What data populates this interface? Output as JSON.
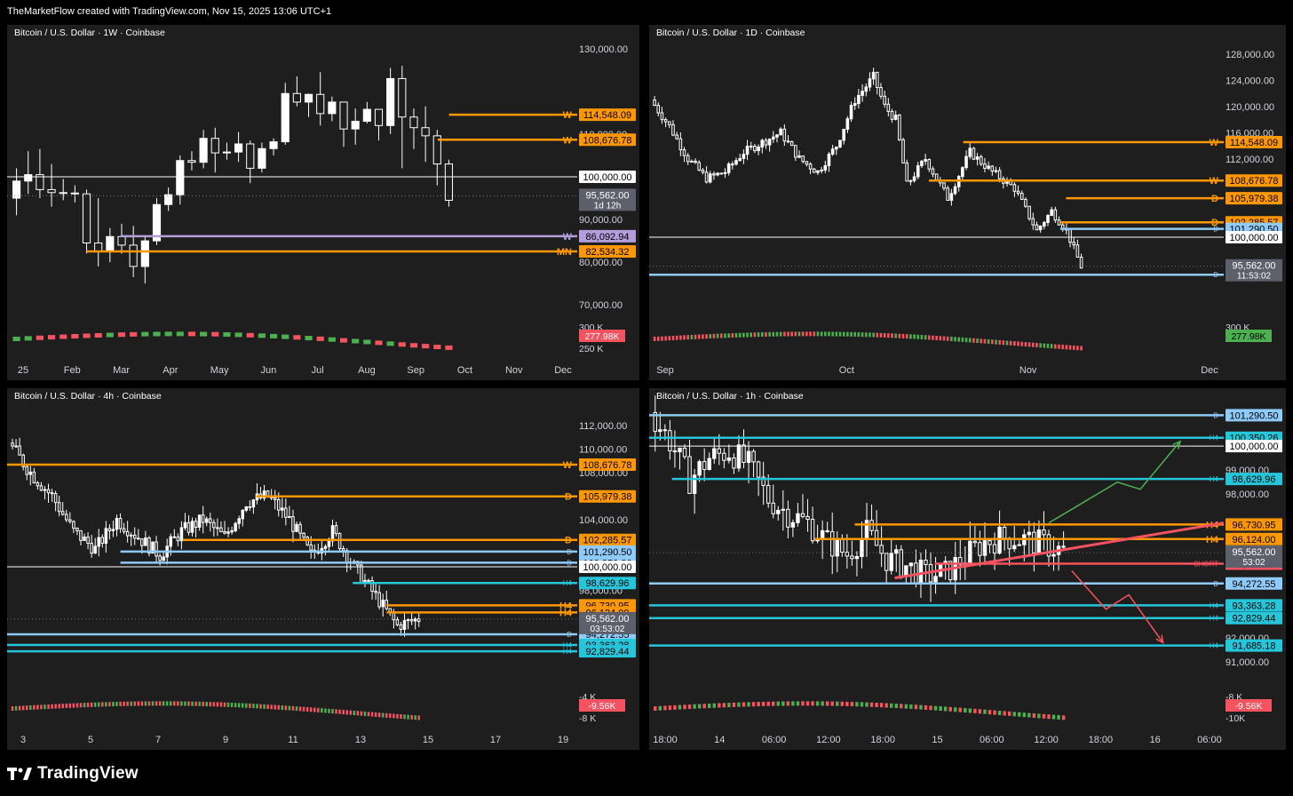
{
  "header": {
    "text": "TheMarketFlow created with TradingView.com, Nov 15, 2025 13:06 UTC+1"
  },
  "footer": {
    "brand": "TradingView"
  },
  "colors": {
    "up": "#ffffff",
    "down": "#ffffff",
    "orange": "#ff9800",
    "lavender": "#b39ddb",
    "lightblue": "#90caf9",
    "cyan": "#26c6da",
    "red": "#f7525f",
    "green": "#4caf50",
    "price": "#5d606b",
    "white": "#ffffff"
  },
  "chart_data": [
    {
      "type": "candlestick",
      "title": "Bitcoin / U.S. Dollar · 1W · Coinbase",
      "ylim": [
        69000,
        131000
      ],
      "y_ticks": [
        {
          "v": 130000,
          "t": "130,000.00"
        },
        {
          "v": 110000,
          "t": "110,000.00"
        },
        {
          "v": 90000,
          "t": "90,000.00"
        },
        {
          "v": 80000,
          "t": "80,000.00"
        },
        {
          "v": 70000,
          "t": "70,000.00"
        }
      ],
      "x_ticks": [
        "25",
        "Feb",
        "Mar",
        "Apr",
        "May",
        "Jun",
        "Jul",
        "Aug",
        "Sep",
        "Oct",
        "Nov",
        "Dec"
      ],
      "volume_labels": [
        "300 K",
        "250 K"
      ],
      "volume_badge": {
        "text": "277.98K",
        "color": "#f7525f"
      },
      "levels": [
        {
          "v": 114548.09,
          "label": "W",
          "text": "114,548.09",
          "color": "#ff9800",
          "from": 0.78
        },
        {
          "v": 108676.78,
          "label": "W",
          "text": "108,676.78",
          "color": "#ff9800",
          "from": 0.76
        },
        {
          "v": 100000,
          "label": "",
          "text": "100,000.00",
          "color": "#ffffff",
          "from": 0.0
        },
        {
          "v": 86092.94,
          "label": "W",
          "text": "86,092.94",
          "color": "#b39ddb",
          "from": 0.2
        },
        {
          "v": 82534.32,
          "label": "MN",
          "text": "82,534.32",
          "color": "#ff9800",
          "from": 0.14
        }
      ],
      "price": {
        "v": 95562.0,
        "text": "95,562.00",
        "sub": "1d 12h"
      },
      "candles": [
        [
          95000,
          102000,
          91000,
          99000
        ],
        [
          99000,
          106000,
          96000,
          100500
        ],
        [
          100500,
          106500,
          95000,
          97000
        ],
        [
          97000,
          103000,
          93000,
          96300
        ],
        [
          96300,
          99500,
          94500,
          96200
        ],
        [
          96200,
          98000,
          94000,
          96000
        ],
        [
          96000,
          97000,
          82000,
          84500
        ],
        [
          84500,
          95000,
          79000,
          82500
        ],
        [
          82500,
          88000,
          80000,
          86000
        ],
        [
          86000,
          89000,
          82000,
          84000
        ],
        [
          84000,
          88500,
          76500,
          79000
        ],
        [
          79000,
          86000,
          75000,
          85000
        ],
        [
          85000,
          95000,
          84000,
          93500
        ],
        [
          93500,
          97500,
          92000,
          95800
        ],
        [
          95800,
          105000,
          93500,
          103800
        ],
        [
          103800,
          106000,
          101500,
          103400
        ],
        [
          103400,
          111000,
          102000,
          109000
        ],
        [
          109000,
          111500,
          101000,
          105600
        ],
        [
          105600,
          108000,
          104000,
          105800
        ],
        [
          105800,
          110500,
          103500,
          107700
        ],
        [
          107700,
          108500,
          98500,
          102000
        ],
        [
          102000,
          108000,
          101000,
          106600
        ],
        [
          106600,
          109000,
          105000,
          108200
        ],
        [
          108200,
          122000,
          107500,
          119500
        ],
        [
          119500,
          123500,
          116500,
          117500
        ],
        [
          117500,
          119500,
          114000,
          119300
        ],
        [
          119300,
          124500,
          112000,
          114800
        ],
        [
          114800,
          118800,
          113000,
          117500
        ],
        [
          117500,
          117000,
          107000,
          111200
        ],
        [
          111200,
          116000,
          107500,
          113000
        ],
        [
          113000,
          117500,
          112500,
          115800
        ],
        [
          115800,
          115500,
          108500,
          112000
        ],
        [
          112000,
          125500,
          110000,
          123000
        ],
        [
          123000,
          126000,
          102000,
          114000
        ],
        [
          114000,
          116000,
          106500,
          111500
        ],
        [
          111500,
          116500,
          103500,
          109600
        ],
        [
          109600,
          111000,
          98000,
          103000
        ],
        [
          103000,
          104000,
          93000,
          94500
        ]
      ]
    },
    {
      "type": "candlestick",
      "title": "Bitcoin / U.S. Dollar · 1D · Coinbase",
      "ylim": [
        89000,
        129500
      ],
      "y_ticks": [
        {
          "v": 128000,
          "t": "128,000.00"
        },
        {
          "v": 124000,
          "t": "124,000.00"
        },
        {
          "v": 120000,
          "t": "120,000.00"
        },
        {
          "v": 116000,
          "t": "116,000.00"
        },
        {
          "v": 112000,
          "t": "112,000.00"
        }
      ],
      "x_ticks": [
        "Sep",
        "Oct",
        "Nov",
        "Dec"
      ],
      "volume_labels": [
        "300 K"
      ],
      "volume_badge": {
        "text": "277.98K",
        "color": "#4caf50"
      },
      "levels": [
        {
          "v": 114548.09,
          "label": "W",
          "text": "114,548.09",
          "color": "#ff9800",
          "from": 0.55
        },
        {
          "v": 108676.78,
          "label": "W",
          "text": "108,676.78",
          "color": "#ff9800",
          "from": 0.49
        },
        {
          "v": 105979.38,
          "label": "D",
          "text": "105,979.38",
          "color": "#ff9800",
          "from": 0.73
        },
        {
          "v": 102285.57,
          "label": "D",
          "text": "102,285.57",
          "color": "#ff9800",
          "from": 0.72
        },
        {
          "v": 101290.5,
          "label": "D",
          "text": "101,290.50",
          "color": "#90caf9",
          "from": 0.72
        },
        {
          "v": 100000,
          "label": "",
          "text": "100,000.00",
          "color": "#ffffff",
          "from": 0.0
        },
        {
          "v": 94272.55,
          "label": "D",
          "text": "94,272.55",
          "color": "#90caf9",
          "from": 0.0
        }
      ],
      "price": {
        "v": 95562.0,
        "text": "95,562.00",
        "sub": "11:53:02"
      },
      "candles_gen": {
        "start": 121000,
        "points": [
          [
            0,
            121000
          ],
          [
            5,
            117000
          ],
          [
            10,
            112000
          ],
          [
            15,
            109000
          ],
          [
            20,
            110000
          ],
          [
            25,
            113000
          ],
          [
            30,
            114500
          ],
          [
            35,
            116000
          ],
          [
            40,
            112000
          ],
          [
            45,
            110000
          ],
          [
            50,
            114000
          ],
          [
            55,
            121000
          ],
          [
            60,
            124500
          ],
          [
            63,
            120000
          ],
          [
            66,
            118000
          ],
          [
            69,
            108000
          ],
          [
            74,
            112000
          ],
          [
            80,
            106000
          ],
          [
            86,
            113000
          ],
          [
            92,
            110000
          ],
          [
            98,
            107500
          ],
          [
            104,
            101000
          ],
          [
            108,
            104000
          ],
          [
            112,
            101000
          ],
          [
            116,
            95500
          ]
        ]
      }
    },
    {
      "type": "candlestick",
      "title": "Bitcoin / U.S. Dollar · 4h · Coinbase",
      "ylim": [
        90500,
        113500
      ],
      "y_ticks": [
        {
          "v": 112000,
          "t": "112,000.00"
        },
        {
          "v": 110000,
          "t": "110,000.00"
        },
        {
          "v": 108000,
          "t": "108,000.00"
        },
        {
          "v": 104000,
          "t": "104,000.00"
        },
        {
          "v": 98000,
          "t": "98,000.00"
        }
      ],
      "x_ticks": [
        "3",
        "5",
        "7",
        "9",
        "11",
        "13",
        "15",
        "17",
        "19"
      ],
      "volume_labels": [
        "-4 K",
        "-8 K"
      ],
      "volume_badge": {
        "text": "-9.56K",
        "color": "#f7525f"
      },
      "levels": [
        {
          "v": 108676.78,
          "label": "W",
          "text": "108,676.78",
          "color": "#ff9800",
          "from": 0.0
        },
        {
          "v": 105979.38,
          "label": "D",
          "text": "105,979.38",
          "color": "#ff9800",
          "from": 0.44
        },
        {
          "v": 102285.57,
          "label": "D",
          "text": "102,285.57",
          "color": "#ff9800",
          "from": 0.31
        },
        {
          "v": 101290.5,
          "label": "D",
          "text": "101,290.50",
          "color": "#90caf9",
          "from": 0.2
        },
        {
          "v": 100350.26,
          "label": "D",
          "text": "100,350.26",
          "color": "#90caf9",
          "from": 0.2
        },
        {
          "v": 100000,
          "label": "",
          "text": "100,000.00",
          "color": "#ffffff",
          "from": 0.0
        },
        {
          "v": 98629.96,
          "label": "H4",
          "text": "98,629.96",
          "color": "#26c6da",
          "from": 0.61
        },
        {
          "v": 96730.95,
          "label": "H4",
          "text": "96,730.95",
          "color": "#ff9800",
          "from": 0.67
        },
        {
          "v": 96124.0,
          "label": "H4",
          "text": "96,124.00",
          "color": "#ff9800",
          "from": 0.67
        },
        {
          "v": 94272.55,
          "label": "D",
          "text": "94,272.55",
          "color": "#90caf9",
          "from": 0.0
        },
        {
          "v": 93363.28,
          "label": "H4",
          "text": "93,363.28",
          "color": "#26c6da",
          "from": 0.0
        },
        {
          "v": 92829.44,
          "label": "H4",
          "text": "92,829.44",
          "color": "#26c6da",
          "from": 0.0
        }
      ],
      "price": {
        "v": 95562.0,
        "text": "95,562.00",
        "sub": "03:53:02"
      },
      "candles_gen": {
        "start": 110500,
        "points": [
          [
            0,
            110500
          ],
          [
            6,
            108000
          ],
          [
            12,
            106000
          ],
          [
            18,
            103000
          ],
          [
            24,
            101500
          ],
          [
            30,
            104000
          ],
          [
            36,
            102500
          ],
          [
            42,
            101000
          ],
          [
            48,
            103000
          ],
          [
            54,
            104000
          ],
          [
            60,
            102500
          ],
          [
            66,
            105500
          ],
          [
            72,
            106000
          ],
          [
            78,
            104000
          ],
          [
            84,
            101000
          ],
          [
            90,
            103000
          ],
          [
            96,
            100000
          ],
          [
            102,
            97500
          ],
          [
            108,
            95000
          ],
          [
            114,
            95600
          ]
        ]
      }
    },
    {
      "type": "candlestick",
      "title": "Bitcoin / U.S. Dollar · 1h · Coinbase",
      "ylim": [
        90300,
        101600
      ],
      "y_ticks": [
        {
          "v": 99000,
          "t": "99,000.00"
        },
        {
          "v": 98000,
          "t": "98,000.00"
        },
        {
          "v": 92000,
          "t": "92,000.00"
        },
        {
          "v": 91000,
          "t": "91,000.00"
        }
      ],
      "x_ticks": [
        "18:00",
        "14",
        "06:00",
        "12:00",
        "18:00",
        "15",
        "06:00",
        "12:00",
        "18:00",
        "16",
        "06:00"
      ],
      "volume_labels": [
        "-8 K",
        "-10K"
      ],
      "volume_badge": {
        "text": "-9.56K",
        "color": "#f7525f"
      },
      "levels": [
        {
          "v": 101290.5,
          "label": "D",
          "text": "101,290.50",
          "color": "#90caf9",
          "from": 0.0
        },
        {
          "v": 100350.26,
          "label": "H4",
          "text": "100,350.26",
          "color": "#26c6da",
          "from": 0.0
        },
        {
          "v": 100000,
          "label": "",
          "text": "100,000.00",
          "color": "#ffffff",
          "from": 0.0
        },
        {
          "v": 98629.96,
          "label": "H4",
          "text": "98,629.96",
          "color": "#26c6da",
          "from": 0.04
        },
        {
          "v": 96730.95,
          "label": "H4",
          "text": "96,730.95",
          "color": "#ff9800",
          "from": 0.36
        },
        {
          "v": 96124.0,
          "label": "H4",
          "text": "96,124.00",
          "color": "#ff9800",
          "from": 0.29
        },
        {
          "v": 95096.01,
          "label": "SHORT",
          "text": "95,096.01",
          "color": "#f7525f",
          "from": 0.5
        },
        {
          "v": 94272.55,
          "label": "D",
          "text": "94,272.55",
          "color": "#90caf9",
          "from": 0.0
        },
        {
          "v": 93363.28,
          "label": "H4",
          "text": "93,363.28",
          "color": "#26c6da",
          "from": 0.0
        },
        {
          "v": 92829.44,
          "label": "H4",
          "text": "92,829.44",
          "color": "#26c6da",
          "from": 0.0
        },
        {
          "v": 91685.18,
          "label": "H4",
          "text": "91,685.18",
          "color": "#26c6da",
          "from": 0.0
        }
      ],
      "price": {
        "v": 95562.0,
        "text": "95,562.00",
        "sub": "53:02"
      },
      "candles_gen": {
        "start": 101400,
        "points": [
          [
            0,
            101400
          ],
          [
            4,
            100200
          ],
          [
            8,
            98600
          ],
          [
            12,
            99500
          ],
          [
            16,
            99800
          ],
          [
            20,
            99200
          ],
          [
            24,
            97800
          ],
          [
            28,
            97200
          ],
          [
            32,
            96800
          ],
          [
            36,
            96000
          ],
          [
            40,
            95500
          ],
          [
            44,
            96400
          ],
          [
            48,
            95300
          ],
          [
            52,
            95000
          ],
          [
            56,
            94600
          ],
          [
            60,
            94700
          ],
          [
            64,
            95400
          ],
          [
            68,
            96000
          ],
          [
            72,
            96200
          ],
          [
            76,
            96100
          ],
          [
            80,
            95900
          ],
          [
            84,
            95600
          ]
        ]
      },
      "trendline": {
        "from": [
          0.43,
          94500
        ],
        "to": [
          1.0,
          96800
        ]
      },
      "arrow_up": [
        [
          0.7,
          96800
        ],
        [
          0.82,
          98500
        ],
        [
          0.86,
          98200
        ],
        [
          0.93,
          100200
        ]
      ],
      "arrow_down": [
        [
          0.74,
          94800
        ],
        [
          0.8,
          93200
        ],
        [
          0.84,
          93800
        ],
        [
          0.9,
          91800
        ]
      ]
    }
  ]
}
